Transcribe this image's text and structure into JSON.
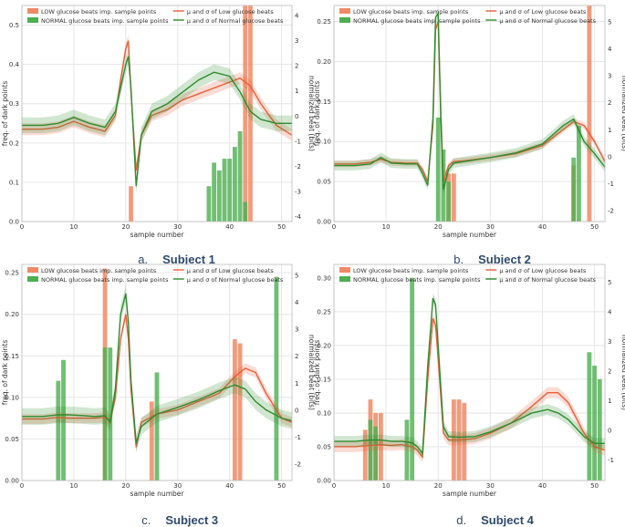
{
  "colors": {
    "low": "#e8603a",
    "low_bar": "#f08a66",
    "normal": "#2e8b2e",
    "normal_bar": "#4caf50",
    "grid": "#e6e6e6",
    "caption": "#2e4a6b"
  },
  "legend_labels": {
    "low_bars": "LOW glucose beats imp. sample points",
    "normal_bars": "NORMAL glucose beats imp. sample points",
    "low_line": "μ and σ of Low glucose beats",
    "normal_line": "μ and σ of Normal glucose beats"
  },
  "captions": [
    {
      "tag": "a.",
      "subject": "Subject 1"
    },
    {
      "tag": "b.",
      "subject": "Subject 2"
    },
    {
      "tag": "c.",
      "subject": "Subject 3"
    },
    {
      "tag": "d.",
      "subject": "Subject 4"
    }
  ],
  "chart_data": [
    {
      "type": "line",
      "xlabel": "sample number",
      "ylabel": "freq. of dark points",
      "y2label": "normalized beat (bits)",
      "xlim": [
        0,
        52
      ],
      "ylim": [
        0,
        0.55
      ],
      "y2lim": [
        -4.2,
        4.4
      ],
      "xticks": [
        0,
        10,
        20,
        30,
        40,
        50
      ],
      "yticks": [
        "0.0",
        "0.1",
        "0.2",
        "0.3",
        "0.4",
        "0.5"
      ],
      "y2ticks": [
        -4,
        -3,
        -2,
        -1,
        0,
        1,
        2,
        3,
        4
      ],
      "legend": "top",
      "series": [
        {
          "name": "μ and σ of Low glucose beats",
          "x": [
            0,
            4,
            7,
            10,
            13,
            16,
            18,
            19,
            20,
            20.5,
            21,
            22,
            23,
            25,
            28,
            31,
            34,
            37,
            40,
            42,
            44,
            46,
            49,
            52
          ],
          "y": [
            0.235,
            0.235,
            0.24,
            0.255,
            0.24,
            0.23,
            0.27,
            0.36,
            0.44,
            0.46,
            0.33,
            0.13,
            0.22,
            0.27,
            0.285,
            0.31,
            0.325,
            0.34,
            0.355,
            0.365,
            0.345,
            0.3,
            0.245,
            0.22
          ],
          "band": 0.015
        },
        {
          "name": "μ and σ of Normal glucose beats",
          "x": [
            0,
            4,
            7,
            10,
            13,
            16,
            18,
            19,
            20,
            20.5,
            21,
            22,
            23,
            25,
            28,
            31,
            34,
            37,
            40,
            42,
            44,
            46,
            49,
            52
          ],
          "y": [
            0.245,
            0.245,
            0.25,
            0.265,
            0.25,
            0.24,
            0.28,
            0.34,
            0.4,
            0.42,
            0.34,
            0.09,
            0.22,
            0.28,
            0.3,
            0.33,
            0.36,
            0.38,
            0.37,
            0.33,
            0.28,
            0.26,
            0.25,
            0.25
          ],
          "band": 0.02
        }
      ],
      "bars_low": {
        "x": [
          21,
          43,
          44
        ],
        "values": [
          0.09,
          0.55,
          0.55
        ]
      },
      "bars_normal": {
        "x": [
          36,
          37,
          38,
          39,
          40,
          41,
          42,
          43
        ],
        "values": [
          0.09,
          0.15,
          0.13,
          0.16,
          0.16,
          0.19,
          0.23,
          0.05
        ]
      }
    },
    {
      "type": "line",
      "xlabel": "sample number",
      "ylabel": "freq. of dark points",
      "y2label": "normalized beat (bits)",
      "xlim": [
        0,
        52
      ],
      "ylim": [
        0,
        0.27
      ],
      "y2lim": [
        -2.4,
        5.6
      ],
      "xticks": [
        0,
        10,
        20,
        30,
        40,
        50
      ],
      "yticks": [
        "0.00",
        "0.05",
        "0.10",
        "0.15",
        "0.20",
        "0.25"
      ],
      "y2ticks": [
        -2,
        -1,
        0,
        1,
        2,
        3,
        4,
        5
      ],
      "legend": "top",
      "series": [
        {
          "name": "μ and σ of Low glucose beats",
          "x": [
            0,
            4,
            7,
            9,
            11,
            14,
            16,
            17,
            18,
            19,
            19.5,
            20,
            20.5,
            21,
            22,
            23,
            25,
            30,
            35,
            40,
            44,
            46,
            48,
            50,
            52
          ],
          "y": [
            0.072,
            0.072,
            0.074,
            0.078,
            0.074,
            0.073,
            0.073,
            0.065,
            0.05,
            0.12,
            0.24,
            0.25,
            0.14,
            0.05,
            0.07,
            0.075,
            0.076,
            0.08,
            0.085,
            0.095,
            0.115,
            0.125,
            0.12,
            0.1,
            0.075
          ],
          "band": 0.004
        },
        {
          "name": "μ and σ of Normal glucose beats",
          "x": [
            0,
            4,
            7,
            9,
            11,
            14,
            16,
            17,
            18,
            19,
            19.5,
            20,
            20.5,
            21,
            22,
            23,
            25,
            30,
            35,
            40,
            44,
            46,
            48,
            50,
            52
          ],
          "y": [
            0.07,
            0.07,
            0.072,
            0.08,
            0.073,
            0.072,
            0.072,
            0.06,
            0.045,
            0.13,
            0.255,
            0.26,
            0.13,
            0.04,
            0.065,
            0.073,
            0.075,
            0.08,
            0.086,
            0.097,
            0.12,
            0.128,
            0.1,
            0.085,
            0.068
          ],
          "band": 0.006
        }
      ],
      "bars_low": {
        "x": [
          22,
          23,
          46,
          49
        ],
        "values": [
          0.06,
          0.06,
          0.07,
          0.27
        ]
      },
      "bars_normal": {
        "x": [
          20,
          21,
          22,
          46,
          47
        ],
        "values": [
          0.13,
          0.09,
          0.05,
          0.08,
          0.12
        ]
      }
    },
    {
      "type": "line",
      "xlabel": "sample number",
      "ylabel": "freq. of dark points",
      "y2label": "normalized beat (bits)",
      "xlim": [
        0,
        52
      ],
      "ylim": [
        0,
        0.26
      ],
      "y2lim": [
        -2.6,
        5.4
      ],
      "xticks": [
        0,
        10,
        20,
        30,
        40,
        50
      ],
      "yticks": [
        "0.00",
        "0.05",
        "0.10",
        "0.15",
        "0.20",
        "0.25"
      ],
      "y2ticks": [
        -2,
        -1,
        0,
        1,
        2,
        3,
        4,
        5
      ],
      "legend": "top",
      "series": [
        {
          "name": "μ and σ of Low glucose beats",
          "x": [
            0,
            4,
            7,
            9,
            12,
            14,
            16,
            17,
            18,
            19,
            20,
            20.5,
            21,
            22,
            23,
            26,
            30,
            34,
            38,
            41,
            43,
            45,
            47,
            50,
            52
          ],
          "y": [
            0.074,
            0.074,
            0.076,
            0.075,
            0.075,
            0.075,
            0.076,
            0.072,
            0.1,
            0.17,
            0.2,
            0.17,
            0.11,
            0.04,
            0.07,
            0.08,
            0.085,
            0.095,
            0.105,
            0.125,
            0.135,
            0.13,
            0.105,
            0.075,
            0.07
          ],
          "band": 0.006
        },
        {
          "name": "μ and σ of Normal glucose beats",
          "x": [
            0,
            4,
            7,
            9,
            12,
            14,
            16,
            17,
            18,
            19,
            20,
            20.5,
            21,
            22,
            23,
            26,
            30,
            34,
            38,
            41,
            43,
            45,
            47,
            50,
            52
          ],
          "y": [
            0.077,
            0.077,
            0.079,
            0.079,
            0.078,
            0.077,
            0.078,
            0.07,
            0.11,
            0.2,
            0.225,
            0.19,
            0.12,
            0.045,
            0.065,
            0.08,
            0.088,
            0.097,
            0.108,
            0.115,
            0.11,
            0.095,
            0.085,
            0.075,
            0.072
          ],
          "band": 0.01
        }
      ],
      "bars_low": {
        "x": [
          16,
          25,
          41,
          42
        ],
        "values": [
          0.255,
          0.095,
          0.17,
          0.165
        ]
      },
      "bars_normal": {
        "x": [
          7,
          8,
          16,
          17,
          26,
          49
        ],
        "values": [
          0.12,
          0.145,
          0.16,
          0.16,
          0.13,
          0.245
        ]
      }
    },
    {
      "type": "line",
      "xlabel": "sample number",
      "ylabel": "freq. of dark points",
      "y2label": "normalized beat (bits)",
      "xlim": [
        0,
        52
      ],
      "ylim": [
        0,
        0.32
      ],
      "y2lim": [
        -1.7,
        5.6
      ],
      "xticks": [
        0,
        10,
        20,
        30,
        40,
        50
      ],
      "yticks": [
        "0.00",
        "0.05",
        "0.10",
        "0.15",
        "0.20",
        "0.25",
        "0.30"
      ],
      "y2ticks": [
        -1,
        0,
        1,
        2,
        3,
        4,
        5
      ],
      "legend": "top",
      "series": [
        {
          "name": "μ and σ of Low glucose beats",
          "x": [
            0,
            4,
            7,
            9,
            11,
            13,
            15,
            16,
            17,
            18,
            19,
            19.5,
            20,
            21,
            22,
            24,
            27,
            30,
            34,
            38,
            41,
            43,
            45,
            48,
            50,
            52
          ],
          "y": [
            0.05,
            0.05,
            0.052,
            0.053,
            0.052,
            0.053,
            0.05,
            0.045,
            0.035,
            0.15,
            0.24,
            0.23,
            0.18,
            0.07,
            0.06,
            0.06,
            0.062,
            0.07,
            0.085,
            0.11,
            0.13,
            0.13,
            0.115,
            0.07,
            0.05,
            0.045
          ],
          "band": 0.008
        },
        {
          "name": "μ and σ of Normal glucose beats",
          "x": [
            0,
            4,
            7,
            9,
            11,
            13,
            15,
            16,
            17,
            18,
            19,
            19.5,
            20,
            21,
            22,
            24,
            27,
            30,
            34,
            38,
            41,
            43,
            45,
            48,
            50,
            52
          ],
          "y": [
            0.058,
            0.058,
            0.06,
            0.06,
            0.058,
            0.058,
            0.056,
            0.05,
            0.04,
            0.17,
            0.27,
            0.26,
            0.2,
            0.08,
            0.065,
            0.064,
            0.065,
            0.072,
            0.085,
            0.1,
            0.105,
            0.1,
            0.09,
            0.065,
            0.055,
            0.055
          ],
          "band": 0.008
        }
      ],
      "bars_low": {
        "x": [
          6,
          7,
          8,
          9,
          23,
          24,
          25
        ],
        "values": [
          0.075,
          0.12,
          0.1,
          0.1,
          0.12,
          0.12,
          0.115
        ]
      },
      "bars_normal": {
        "x": [
          7,
          8,
          14,
          15,
          49,
          50,
          51
        ],
        "values": [
          0.09,
          0.08,
          0.09,
          0.3,
          0.19,
          0.17,
          0.15
        ]
      }
    }
  ]
}
